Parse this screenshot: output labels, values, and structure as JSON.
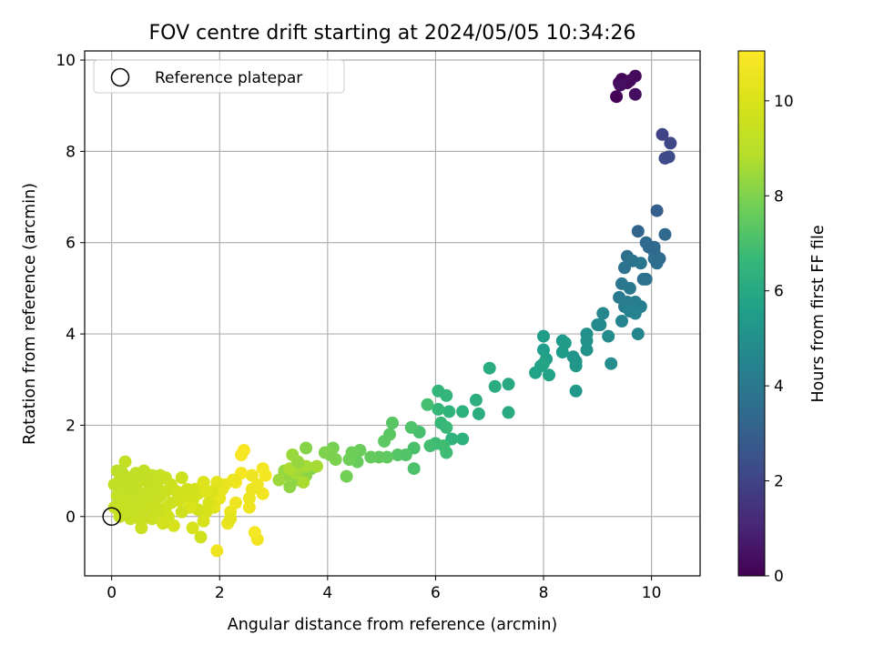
{
  "chart_data": {
    "type": "scatter",
    "title": "FOV centre drift starting at 2024/05/05 10:34:26",
    "xlabel": "Angular distance from reference (arcmin)",
    "ylabel": "Rotation from reference (arcmin)",
    "xlim": [
      -0.5,
      10.9
    ],
    "ylim": [
      -1.3,
      10.2
    ],
    "xticks": [
      0,
      2,
      4,
      6,
      8,
      10
    ],
    "yticks": [
      0,
      2,
      4,
      6,
      8,
      10
    ],
    "grid": true,
    "legend": {
      "position": "top-left",
      "entries": [
        "Reference platepar"
      ]
    },
    "colorbar": {
      "label": "Hours from first FF file",
      "colormap": "viridis",
      "range": [
        0,
        11.05
      ],
      "ticks": [
        0,
        2,
        4,
        6,
        8,
        10
      ]
    },
    "reference_point": {
      "name": "Reference platepar",
      "x": 0,
      "y": 0
    },
    "series": [
      {
        "columns": [
          "x",
          "y",
          "hours"
        ],
        "points": [
          [
            9.35,
            9.2,
            0.05
          ],
          [
            9.4,
            9.5,
            0.1
          ],
          [
            9.45,
            9.58,
            0.15
          ],
          [
            9.55,
            9.5,
            0.2
          ],
          [
            9.6,
            9.55,
            0.25
          ],
          [
            9.7,
            9.65,
            0.3
          ],
          [
            9.7,
            9.25,
            0.35
          ],
          [
            9.42,
            9.45,
            0.4
          ],
          [
            10.2,
            8.37,
            2.0
          ],
          [
            10.35,
            8.18,
            2.1
          ],
          [
            10.25,
            7.85,
            2.2
          ],
          [
            10.32,
            7.88,
            2.3
          ],
          [
            10.1,
            6.7,
            3.0
          ],
          [
            9.75,
            6.25,
            3.2
          ],
          [
            10.25,
            6.18,
            3.3
          ],
          [
            9.9,
            6.0,
            3.4
          ],
          [
            10.05,
            5.8,
            3.5
          ],
          [
            10.1,
            5.55,
            3.6
          ],
          [
            9.85,
            5.2,
            3.7
          ],
          [
            9.95,
            5.9,
            3.45
          ],
          [
            10.05,
            5.65,
            3.55
          ],
          [
            9.55,
            5.7,
            3.6
          ],
          [
            9.5,
            5.45,
            3.75
          ],
          [
            9.65,
            5.6,
            3.8
          ],
          [
            9.8,
            5.55,
            3.85
          ],
          [
            9.45,
            5.1,
            3.95
          ],
          [
            9.6,
            5.0,
            4.0
          ],
          [
            9.4,
            4.8,
            4.1
          ],
          [
            9.55,
            4.7,
            4.15
          ],
          [
            9.7,
            4.7,
            4.2
          ],
          [
            9.5,
            4.6,
            4.25
          ],
          [
            9.8,
            4.6,
            4.3
          ],
          [
            9.6,
            4.5,
            4.35
          ],
          [
            9.7,
            4.45,
            4.4
          ],
          [
            9.45,
            4.28,
            4.5
          ],
          [
            9.75,
            4.0,
            4.55
          ],
          [
            9.1,
            4.45,
            4.6
          ],
          [
            9.05,
            4.2,
            4.65
          ],
          [
            9.0,
            4.2,
            4.7
          ],
          [
            9.2,
            3.95,
            4.8
          ],
          [
            9.25,
            3.35,
            4.9
          ],
          [
            10.05,
            5.9,
            3.4
          ],
          [
            10.15,
            5.65,
            3.5
          ],
          [
            9.9,
            5.2,
            3.7
          ],
          [
            8.8,
            4.0,
            5.0
          ],
          [
            8.8,
            3.85,
            5.05
          ],
          [
            8.8,
            3.65,
            5.1
          ],
          [
            8.55,
            3.5,
            5.15
          ],
          [
            8.6,
            3.4,
            5.2
          ],
          [
            8.6,
            3.3,
            5.25
          ],
          [
            8.6,
            2.75,
            5.3
          ],
          [
            8.35,
            3.85,
            5.35
          ],
          [
            8.4,
            3.8,
            5.4
          ],
          [
            8.35,
            3.6,
            5.45
          ],
          [
            8.0,
            3.95,
            5.5
          ],
          [
            8.0,
            3.65,
            5.55
          ],
          [
            8.05,
            3.45,
            5.6
          ],
          [
            7.95,
            3.3,
            5.65
          ],
          [
            7.85,
            3.15,
            5.7
          ],
          [
            8.1,
            3.1,
            5.75
          ],
          [
            8.0,
            3.35,
            5.8
          ],
          [
            7.35,
            2.9,
            6.0
          ],
          [
            7.35,
            2.28,
            6.05
          ],
          [
            7.1,
            2.85,
            6.1
          ],
          [
            7.0,
            3.25,
            6.15
          ],
          [
            6.8,
            2.25,
            6.2
          ],
          [
            6.75,
            2.55,
            6.25
          ],
          [
            6.5,
            2.3,
            6.3
          ],
          [
            6.5,
            1.7,
            6.35
          ],
          [
            6.3,
            1.7,
            6.4
          ],
          [
            6.25,
            2.3,
            6.45
          ],
          [
            6.2,
            2.65,
            6.5
          ],
          [
            6.05,
            2.75,
            6.55
          ],
          [
            6.05,
            2.35,
            6.6
          ],
          [
            6.1,
            2.05,
            6.65
          ],
          [
            6.2,
            1.95,
            6.7
          ],
          [
            6.0,
            1.6,
            6.75
          ],
          [
            6.2,
            1.4,
            6.8
          ],
          [
            6.15,
            1.55,
            6.85
          ],
          [
            5.9,
            1.55,
            6.9
          ],
          [
            5.85,
            2.45,
            6.95
          ],
          [
            5.7,
            1.85,
            7.0
          ],
          [
            5.6,
            1.5,
            7.05
          ],
          [
            5.6,
            1.05,
            7.1
          ],
          [
            5.55,
            1.95,
            7.15
          ],
          [
            5.45,
            1.35,
            7.2
          ],
          [
            5.3,
            1.35,
            7.25
          ],
          [
            5.2,
            2.05,
            7.3
          ],
          [
            5.15,
            1.8,
            7.35
          ],
          [
            5.05,
            1.65,
            7.4
          ],
          [
            5.1,
            1.3,
            7.45
          ],
          [
            4.95,
            1.3,
            7.5
          ],
          [
            4.8,
            1.3,
            7.55
          ],
          [
            4.55,
            1.2,
            7.6
          ],
          [
            4.6,
            1.45,
            7.65
          ],
          [
            4.45,
            1.4,
            7.7
          ],
          [
            4.4,
            1.25,
            7.75
          ],
          [
            4.35,
            0.88,
            7.8
          ],
          [
            4.1,
            1.5,
            7.85
          ],
          [
            4.05,
            1.35,
            7.9
          ],
          [
            4.15,
            1.25,
            7.95
          ],
          [
            3.95,
            1.4,
            8.0
          ],
          [
            3.7,
            1.05,
            8.05
          ],
          [
            3.6,
            1.5,
            8.1
          ],
          [
            3.6,
            0.9,
            8.15
          ],
          [
            3.45,
            0.8,
            8.2
          ],
          [
            3.3,
            0.65,
            8.25
          ],
          [
            3.25,
            0.9,
            8.3
          ],
          [
            3.2,
            1.0,
            8.35
          ],
          [
            3.35,
            1.35,
            8.4
          ],
          [
            3.1,
            0.8,
            8.45
          ],
          [
            3.5,
            1.1,
            8.5
          ],
          [
            3.4,
            0.95,
            8.55
          ],
          [
            3.6,
            1.1,
            8.6
          ],
          [
            3.55,
            0.75,
            8.65
          ],
          [
            3.3,
            1.05,
            8.7
          ],
          [
            3.8,
            1.1,
            8.6
          ],
          [
            3.45,
            1.2,
            8.35
          ],
          [
            2.85,
            0.9,
            10.8
          ],
          [
            2.8,
            1.05,
            10.75
          ],
          [
            2.8,
            0.5,
            10.7
          ],
          [
            2.7,
            0.7,
            10.65
          ],
          [
            2.7,
            -0.5,
            10.7
          ],
          [
            2.65,
            -0.35,
            10.75
          ],
          [
            2.6,
            0.9,
            10.6
          ],
          [
            2.6,
            0.6,
            10.55
          ],
          [
            2.55,
            0.2,
            10.6
          ],
          [
            2.55,
            0.4,
            10.5
          ],
          [
            2.45,
            1.45,
            10.9
          ],
          [
            2.4,
            1.35,
            10.85
          ],
          [
            2.4,
            0.95,
            10.8
          ],
          [
            2.3,
            0.75,
            10.7
          ],
          [
            2.3,
            0.3,
            10.6
          ],
          [
            2.25,
            0.8,
            10.55
          ],
          [
            2.2,
            0.1,
            10.5
          ],
          [
            2.15,
            -0.15,
            10.45
          ],
          [
            2.1,
            0.7,
            10.5
          ],
          [
            2.05,
            0.6,
            10.4
          ],
          [
            2.0,
            0.4,
            10.35
          ],
          [
            1.95,
            0.75,
            10.3
          ],
          [
            1.95,
            -0.75,
            10.6
          ],
          [
            1.9,
            0.2,
            10.25
          ],
          [
            2.2,
            -0.05,
            10.3
          ],
          [
            1.85,
            0.55,
            10.0
          ],
          [
            1.8,
            0.3,
            9.9
          ],
          [
            1.75,
            0.1,
            9.95
          ],
          [
            1.7,
            -0.1,
            9.9
          ],
          [
            1.65,
            -0.45,
            9.7
          ],
          [
            1.6,
            0.5,
            9.85
          ],
          [
            1.6,
            0.15,
            9.8
          ],
          [
            1.55,
            0.6,
            9.75
          ],
          [
            1.5,
            0.35,
            9.8
          ],
          [
            1.5,
            -0.25,
            9.9
          ],
          [
            1.45,
            0.2,
            10.0
          ],
          [
            1.4,
            0.6,
            9.7
          ],
          [
            1.35,
            0.45,
            9.75
          ],
          [
            1.3,
            0.85,
            9.6
          ],
          [
            1.3,
            0.1,
            9.65
          ],
          [
            1.25,
            0.35,
            9.8
          ],
          [
            1.2,
            0.55,
            9.7
          ],
          [
            1.15,
            -0.2,
            9.9
          ],
          [
            1.1,
            0.7,
            9.6
          ],
          [
            1.1,
            0.3,
            9.65
          ],
          [
            1.05,
            0.0,
            9.7
          ],
          [
            1.0,
            0.55,
            9.55
          ],
          [
            1.0,
            0.2,
            9.6
          ],
          [
            0.95,
            -0.15,
            9.75
          ],
          [
            0.95,
            0.85,
            9.5
          ],
          [
            1.7,
            0.75,
            10.1
          ],
          [
            1.75,
            0.55,
            10.15
          ],
          [
            0.9,
            0.45,
            9.45
          ],
          [
            0.9,
            0.9,
            9.4
          ],
          [
            0.85,
            0.1,
            9.5
          ],
          [
            0.8,
            0.6,
            9.35
          ],
          [
            0.8,
            0.25,
            9.4
          ],
          [
            0.75,
            -0.05,
            9.5
          ],
          [
            0.75,
            0.9,
            9.3
          ],
          [
            0.7,
            0.45,
            9.35
          ],
          [
            0.7,
            0.7,
            9.25
          ],
          [
            0.65,
            0.15,
            9.4
          ],
          [
            0.6,
            0.5,
            9.3
          ],
          [
            0.6,
            1.0,
            9.2
          ],
          [
            0.55,
            -0.1,
            9.45
          ],
          [
            0.55,
            0.3,
            9.35
          ],
          [
            0.5,
            0.75,
            9.25
          ],
          [
            0.5,
            0.05,
            9.4
          ],
          [
            0.45,
            0.55,
            9.3
          ],
          [
            0.45,
            0.95,
            9.2
          ],
          [
            0.4,
            0.2,
            9.35
          ],
          [
            0.4,
            0.6,
            9.25
          ],
          [
            0.35,
            -0.05,
            9.4
          ],
          [
            0.35,
            0.85,
            9.2
          ],
          [
            0.3,
            0.4,
            9.3
          ],
          [
            0.3,
            0.7,
            9.2
          ],
          [
            0.25,
            0.1,
            9.35
          ],
          [
            0.25,
            1.2,
            9.3
          ],
          [
            0.2,
            0.55,
            9.25
          ],
          [
            0.2,
            0.25,
            9.35
          ],
          [
            0.15,
            0.8,
            9.2
          ],
          [
            0.15,
            0.0,
            9.4
          ],
          [
            0.1,
            0.45,
            9.3
          ],
          [
            0.1,
            1.0,
            9.1
          ],
          [
            0.05,
            0.7,
            9.2
          ],
          [
            0.05,
            0.2,
            9.35
          ],
          [
            0.55,
            -0.25,
            9.5
          ],
          [
            0.65,
            0.9,
            9.25
          ],
          [
            0.85,
            0.75,
            9.35
          ],
          [
            1.0,
            0.85,
            9.45
          ],
          [
            0.4,
            0.35,
            9.3
          ],
          [
            0.7,
            0.25,
            9.4
          ],
          [
            0.2,
            0.95,
            9.15
          ],
          [
            0.3,
            0.05,
            9.35
          ]
        ]
      }
    ]
  }
}
